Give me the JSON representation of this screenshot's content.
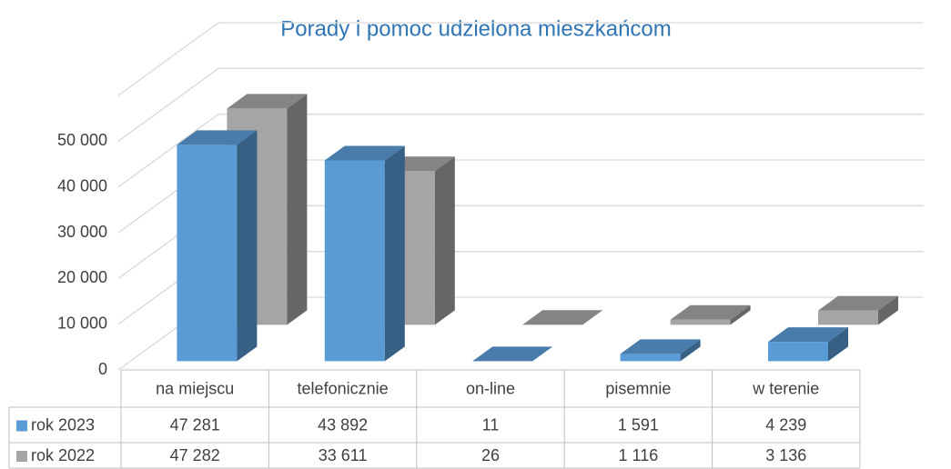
{
  "chart_data": {
    "type": "bar3d",
    "title": "Porady i pomoc udzielona mieszkańcom",
    "categories": [
      "na miejscu",
      "telefonicznie",
      "on-line",
      "pisemnie",
      "w terenie"
    ],
    "series": [
      {
        "name": "rok 2023",
        "color": "#5b9bd5",
        "values": [
          47281,
          43892,
          11,
          1591,
          4239
        ],
        "value_labels": [
          "47 281",
          "43 892",
          "11",
          "1 591",
          "4 239"
        ]
      },
      {
        "name": "rok 2022",
        "color": "#a5a5a5",
        "values": [
          47282,
          33611,
          26,
          1116,
          3136
        ],
        "value_labels": [
          "47 282",
          "33 611",
          "26",
          "1 116",
          "3 136"
        ]
      }
    ],
    "ylim": [
      0,
      60000
    ],
    "yticks": [
      0,
      {
        "value": 10000,
        "label": "10 000"
      },
      {
        "value": 20000,
        "label": "20 000"
      },
      {
        "value": 30000,
        "label": "30 000"
      },
      {
        "value": 40000,
        "label": "40 000"
      },
      {
        "value": 50000,
        "label": "50 000"
      }
    ],
    "grid": true,
    "data_table": true
  }
}
